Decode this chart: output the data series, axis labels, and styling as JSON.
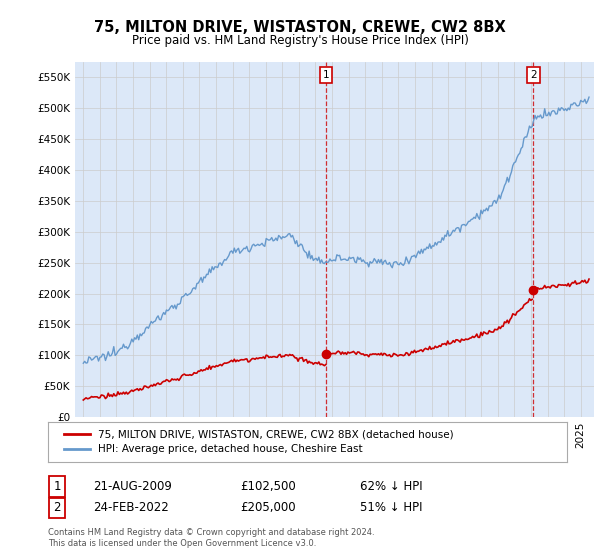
{
  "title": "75, MILTON DRIVE, WISTASTON, CREWE, CW2 8BX",
  "subtitle": "Price paid vs. HM Land Registry's House Price Index (HPI)",
  "legend_label_red": "75, MILTON DRIVE, WISTASTON, CREWE, CW2 8BX (detached house)",
  "legend_label_blue": "HPI: Average price, detached house, Cheshire East",
  "footer": "Contains HM Land Registry data © Crown copyright and database right 2024.\nThis data is licensed under the Open Government Licence v3.0.",
  "sale1_label": "1",
  "sale1_date": "21-AUG-2009",
  "sale1_price": "£102,500",
  "sale1_hpi": "62% ↓ HPI",
  "sale2_label": "2",
  "sale2_date": "24-FEB-2022",
  "sale2_price": "£205,000",
  "sale2_hpi": "51% ↓ HPI",
  "ylim": [
    0,
    575000
  ],
  "yticks": [
    0,
    50000,
    100000,
    150000,
    200000,
    250000,
    300000,
    350000,
    400000,
    450000,
    500000,
    550000
  ],
  "ytick_labels": [
    "£0",
    "£50K",
    "£100K",
    "£150K",
    "£200K",
    "£250K",
    "£300K",
    "£350K",
    "£400K",
    "£450K",
    "£500K",
    "£550K"
  ],
  "background_color": "#dce8f8",
  "fig_background": "#ffffff",
  "red_color": "#cc0000",
  "blue_color": "#6699cc",
  "sale1_x": 2009.65,
  "sale1_y": 102500,
  "sale2_x": 2022.15,
  "sale2_y": 205000,
  "xlim_left": 1994.5,
  "xlim_right": 2025.8
}
